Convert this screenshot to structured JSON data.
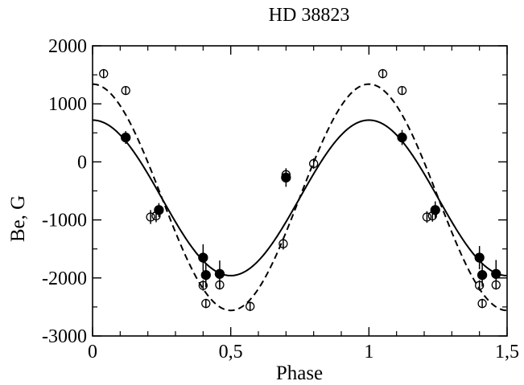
{
  "chart_data": {
    "type": "scatter",
    "title": "HD 38823",
    "xlabel": "Phase",
    "ylabel": "Be, G",
    "xlim": [
      0,
      1.5
    ],
    "ylim": [
      -3000,
      2000
    ],
    "x_ticks": [
      0,
      0.5,
      1,
      1.5
    ],
    "x_tick_labels": [
      "0",
      "0,5",
      "1",
      "1,5"
    ],
    "y_ticks": [
      -3000,
      -2000,
      -1000,
      0,
      1000,
      2000
    ],
    "y_tick_labels": [
      "-3000",
      "-2000",
      "-1000",
      "0",
      "1000",
      "2000"
    ],
    "grid": false,
    "series": [
      {
        "marker": "filled-circle",
        "color": "#000000",
        "points": [
          {
            "x": 0.12,
            "y": 420,
            "err": 110
          },
          {
            "x": 0.24,
            "y": -830,
            "err": 120
          },
          {
            "x": 0.4,
            "y": -1650,
            "err": 230
          },
          {
            "x": 0.41,
            "y": -1950,
            "err": 210
          },
          {
            "x": 0.46,
            "y": -1930,
            "err": 230
          },
          {
            "x": 0.7,
            "y": -270,
            "err": 160
          },
          {
            "x": 1.12,
            "y": 420,
            "err": 130
          },
          {
            "x": 1.24,
            "y": -830,
            "err": 150
          },
          {
            "x": 1.4,
            "y": -1650,
            "err": 200
          },
          {
            "x": 1.41,
            "y": -1950,
            "err": 200
          },
          {
            "x": 1.46,
            "y": -1930,
            "err": 240
          }
        ]
      },
      {
        "marker": "open-circle",
        "color": "#000000",
        "points": [
          {
            "x": 0.04,
            "y": 1520,
            "err": 80
          },
          {
            "x": 0.12,
            "y": 1230,
            "err": 70
          },
          {
            "x": 0.21,
            "y": -950,
            "err": 120
          },
          {
            "x": 0.23,
            "y": -930,
            "err": 110
          },
          {
            "x": 0.4,
            "y": -2130,
            "err": 90
          },
          {
            "x": 0.41,
            "y": -2440,
            "err": 80
          },
          {
            "x": 0.46,
            "y": -2120,
            "err": 80
          },
          {
            "x": 0.57,
            "y": -2490,
            "err": 80
          },
          {
            "x": 0.69,
            "y": -1410,
            "err": 100
          },
          {
            "x": 0.7,
            "y": -220,
            "err": 90
          },
          {
            "x": 0.8,
            "y": -30,
            "err": 90
          },
          {
            "x": 1.05,
            "y": 1520,
            "err": 80
          },
          {
            "x": 1.12,
            "y": 1230,
            "err": 70
          },
          {
            "x": 1.21,
            "y": -950,
            "err": 100
          },
          {
            "x": 1.23,
            "y": -930,
            "err": 100
          },
          {
            "x": 1.4,
            "y": -2130,
            "err": 90
          },
          {
            "x": 1.41,
            "y": -2440,
            "err": 80
          },
          {
            "x": 1.46,
            "y": -2120,
            "err": 80
          }
        ]
      }
    ],
    "fits": [
      {
        "style": "solid",
        "mean": -620,
        "amplitude": 1340,
        "phase_offset": 0.0
      },
      {
        "style": "dashed",
        "mean": -610,
        "amplitude": 1950,
        "phase_offset": 0.0
      }
    ]
  }
}
